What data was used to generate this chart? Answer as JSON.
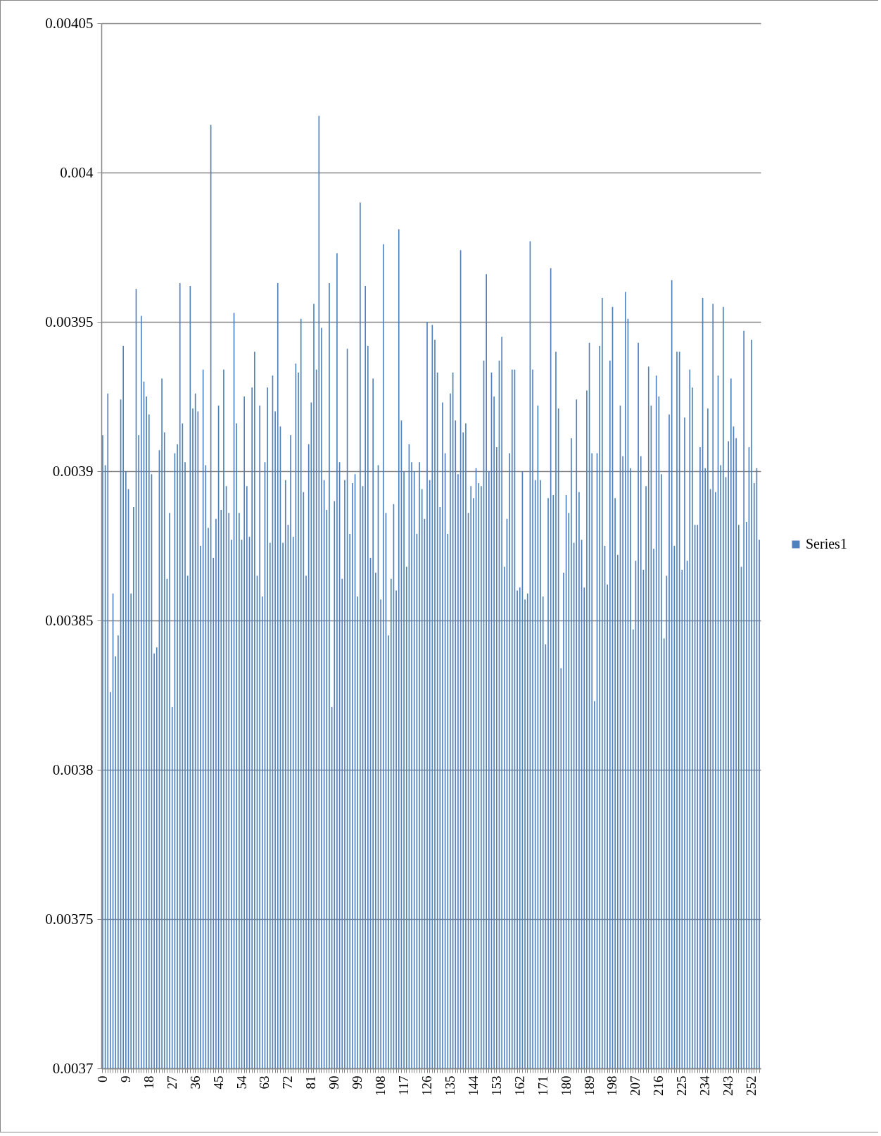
{
  "chart_data": {
    "type": "bar",
    "categories": [
      "0",
      null,
      null,
      null,
      null,
      null,
      null,
      null,
      null,
      "9",
      null,
      null,
      null,
      null,
      null,
      null,
      null,
      null,
      "18",
      null,
      null,
      null,
      null,
      null,
      null,
      null,
      null,
      "27",
      null,
      null,
      null,
      null,
      null,
      null,
      null,
      null,
      "36",
      null,
      null,
      null,
      null,
      null,
      null,
      null,
      null,
      "45",
      null,
      null,
      null,
      null,
      null,
      null,
      null,
      null,
      "54",
      null,
      null,
      null,
      null,
      null,
      null,
      null,
      null,
      "63",
      null,
      null,
      null,
      null,
      null,
      null,
      null,
      null,
      "72",
      null,
      null,
      null,
      null,
      null,
      null,
      null,
      null,
      "81",
      null,
      null,
      null,
      null,
      null,
      null,
      null,
      null,
      "90",
      null,
      null,
      null,
      null,
      null,
      null,
      null,
      null,
      "99",
      null,
      null,
      null,
      null,
      null,
      null,
      null,
      null,
      "108",
      null,
      null,
      null,
      null,
      null,
      null,
      null,
      null,
      "117",
      null,
      null,
      null,
      null,
      null,
      null,
      null,
      null,
      "126",
      null,
      null,
      null,
      null,
      null,
      null,
      null,
      null,
      "135",
      null,
      null,
      null,
      null,
      null,
      null,
      null,
      null,
      "144",
      null,
      null,
      null,
      null,
      null,
      null,
      null,
      null,
      "153",
      null,
      null,
      null,
      null,
      null,
      null,
      null,
      null,
      "162",
      null,
      null,
      null,
      null,
      null,
      null,
      null,
      null,
      "171",
      null,
      null,
      null,
      null,
      null,
      null,
      null,
      null,
      "180",
      null,
      null,
      null,
      null,
      null,
      null,
      null,
      null,
      "189",
      null,
      null,
      null,
      null,
      null,
      null,
      null,
      null,
      "198",
      null,
      null,
      null,
      null,
      null,
      null,
      null,
      null,
      "207",
      null,
      null,
      null,
      null,
      null,
      null,
      null,
      null,
      "216",
      null,
      null,
      null,
      null,
      null,
      null,
      null,
      null,
      "225",
      null,
      null,
      null,
      null,
      null,
      null,
      null,
      null,
      "234",
      null,
      null,
      null,
      null,
      null,
      null,
      null,
      null,
      "243",
      null,
      null,
      null,
      null,
      null,
      null,
      null,
      null,
      "252",
      null,
      null,
      null
    ],
    "series": [
      {
        "name": "Series1",
        "color": "#4f81bd",
        "values": [
          0.003912,
          0.003902,
          0.003926,
          0.003826,
          0.003859,
          0.003838,
          0.003845,
          0.003924,
          0.003942,
          0.0039,
          0.003894,
          0.003859,
          0.003888,
          0.003961,
          0.003912,
          0.003952,
          0.00393,
          0.003925,
          0.003919,
          0.003899,
          0.003839,
          0.003841,
          0.003907,
          0.003931,
          0.003913,
          0.003864,
          0.003886,
          0.003821,
          0.003906,
          0.003909,
          0.003963,
          0.003916,
          0.003903,
          0.003865,
          0.003962,
          0.003921,
          0.003926,
          0.00392,
          0.003875,
          0.003934,
          0.003902,
          0.003881,
          0.004016,
          0.003871,
          0.003884,
          0.003922,
          0.003887,
          0.003934,
          0.003895,
          0.003886,
          0.003877,
          0.003953,
          0.003916,
          0.003886,
          0.003877,
          0.003925,
          0.003895,
          0.003878,
          0.003928,
          0.00394,
          0.003865,
          0.003922,
          0.003858,
          0.003903,
          0.003928,
          0.003876,
          0.003932,
          0.00392,
          0.003963,
          0.003915,
          0.003876,
          0.003897,
          0.003882,
          0.003912,
          0.003878,
          0.003936,
          0.003933,
          0.003951,
          0.003893,
          0.003865,
          0.003909,
          0.003923,
          0.003956,
          0.003934,
          0.004019,
          0.003948,
          0.003897,
          0.003887,
          0.003963,
          0.003821,
          0.00389,
          0.003973,
          0.003903,
          0.003864,
          0.003897,
          0.003941,
          0.003879,
          0.003896,
          0.003899,
          0.003858,
          0.00399,
          0.003895,
          0.003962,
          0.003942,
          0.003871,
          0.003931,
          0.003866,
          0.003902,
          0.003857,
          0.003976,
          0.003886,
          0.003845,
          0.003864,
          0.003889,
          0.00386,
          0.003981,
          0.003917,
          0.0039,
          0.003868,
          0.003909,
          0.003903,
          0.0039,
          0.003879,
          0.003903,
          0.003894,
          0.003884,
          0.00395,
          0.003897,
          0.003949,
          0.003944,
          0.003933,
          0.003888,
          0.003923,
          0.003906,
          0.003879,
          0.003926,
          0.003933,
          0.003917,
          0.003899,
          0.003974,
          0.003913,
          0.003916,
          0.003886,
          0.003895,
          0.003891,
          0.003901,
          0.003896,
          0.003895,
          0.003937,
          0.003966,
          0.0039,
          0.003933,
          0.003925,
          0.003908,
          0.003937,
          0.003945,
          0.003868,
          0.003884,
          0.003906,
          0.003934,
          0.003934,
          0.00386,
          0.003861,
          0.0039,
          0.003857,
          0.003859,
          0.003977,
          0.003934,
          0.003897,
          0.003922,
          0.003897,
          0.003858,
          0.003842,
          0.003891,
          0.003968,
          0.003892,
          0.00394,
          0.003921,
          0.003834,
          0.003866,
          0.003892,
          0.003886,
          0.003911,
          0.003876,
          0.003924,
          0.003893,
          0.003877,
          0.003861,
          0.003927,
          0.003943,
          0.003906,
          0.003823,
          0.003906,
          0.003942,
          0.003958,
          0.003875,
          0.003862,
          0.003937,
          0.003955,
          0.003891,
          0.003872,
          0.003922,
          0.003905,
          0.00396,
          0.003951,
          0.003901,
          0.003847,
          0.00387,
          0.003943,
          0.003905,
          0.003867,
          0.003895,
          0.003935,
          0.003922,
          0.003874,
          0.003932,
          0.003925,
          0.003899,
          0.003844,
          0.003865,
          0.003919,
          0.003964,
          0.003875,
          0.00394,
          0.00394,
          0.003867,
          0.003918,
          0.00387,
          0.003934,
          0.003928,
          0.003882,
          0.003882,
          0.003908,
          0.003958,
          0.003901,
          0.003921,
          0.003894,
          0.003956,
          0.003893,
          0.003932,
          0.003902,
          0.003955,
          0.003898,
          0.00391,
          0.003931,
          0.003915,
          0.003911,
          0.003882,
          0.003868,
          0.003947,
          0.003883,
          0.003908,
          0.003944,
          0.003896,
          0.003901,
          0.003877
        ]
      }
    ],
    "ylim": [
      0.0037,
      0.00405
    ],
    "yticks": [
      0.0037,
      0.00375,
      0.0038,
      0.00385,
      0.0039,
      0.00395,
      0.004,
      0.00405
    ],
    "grid": "y",
    "legend": "right"
  }
}
